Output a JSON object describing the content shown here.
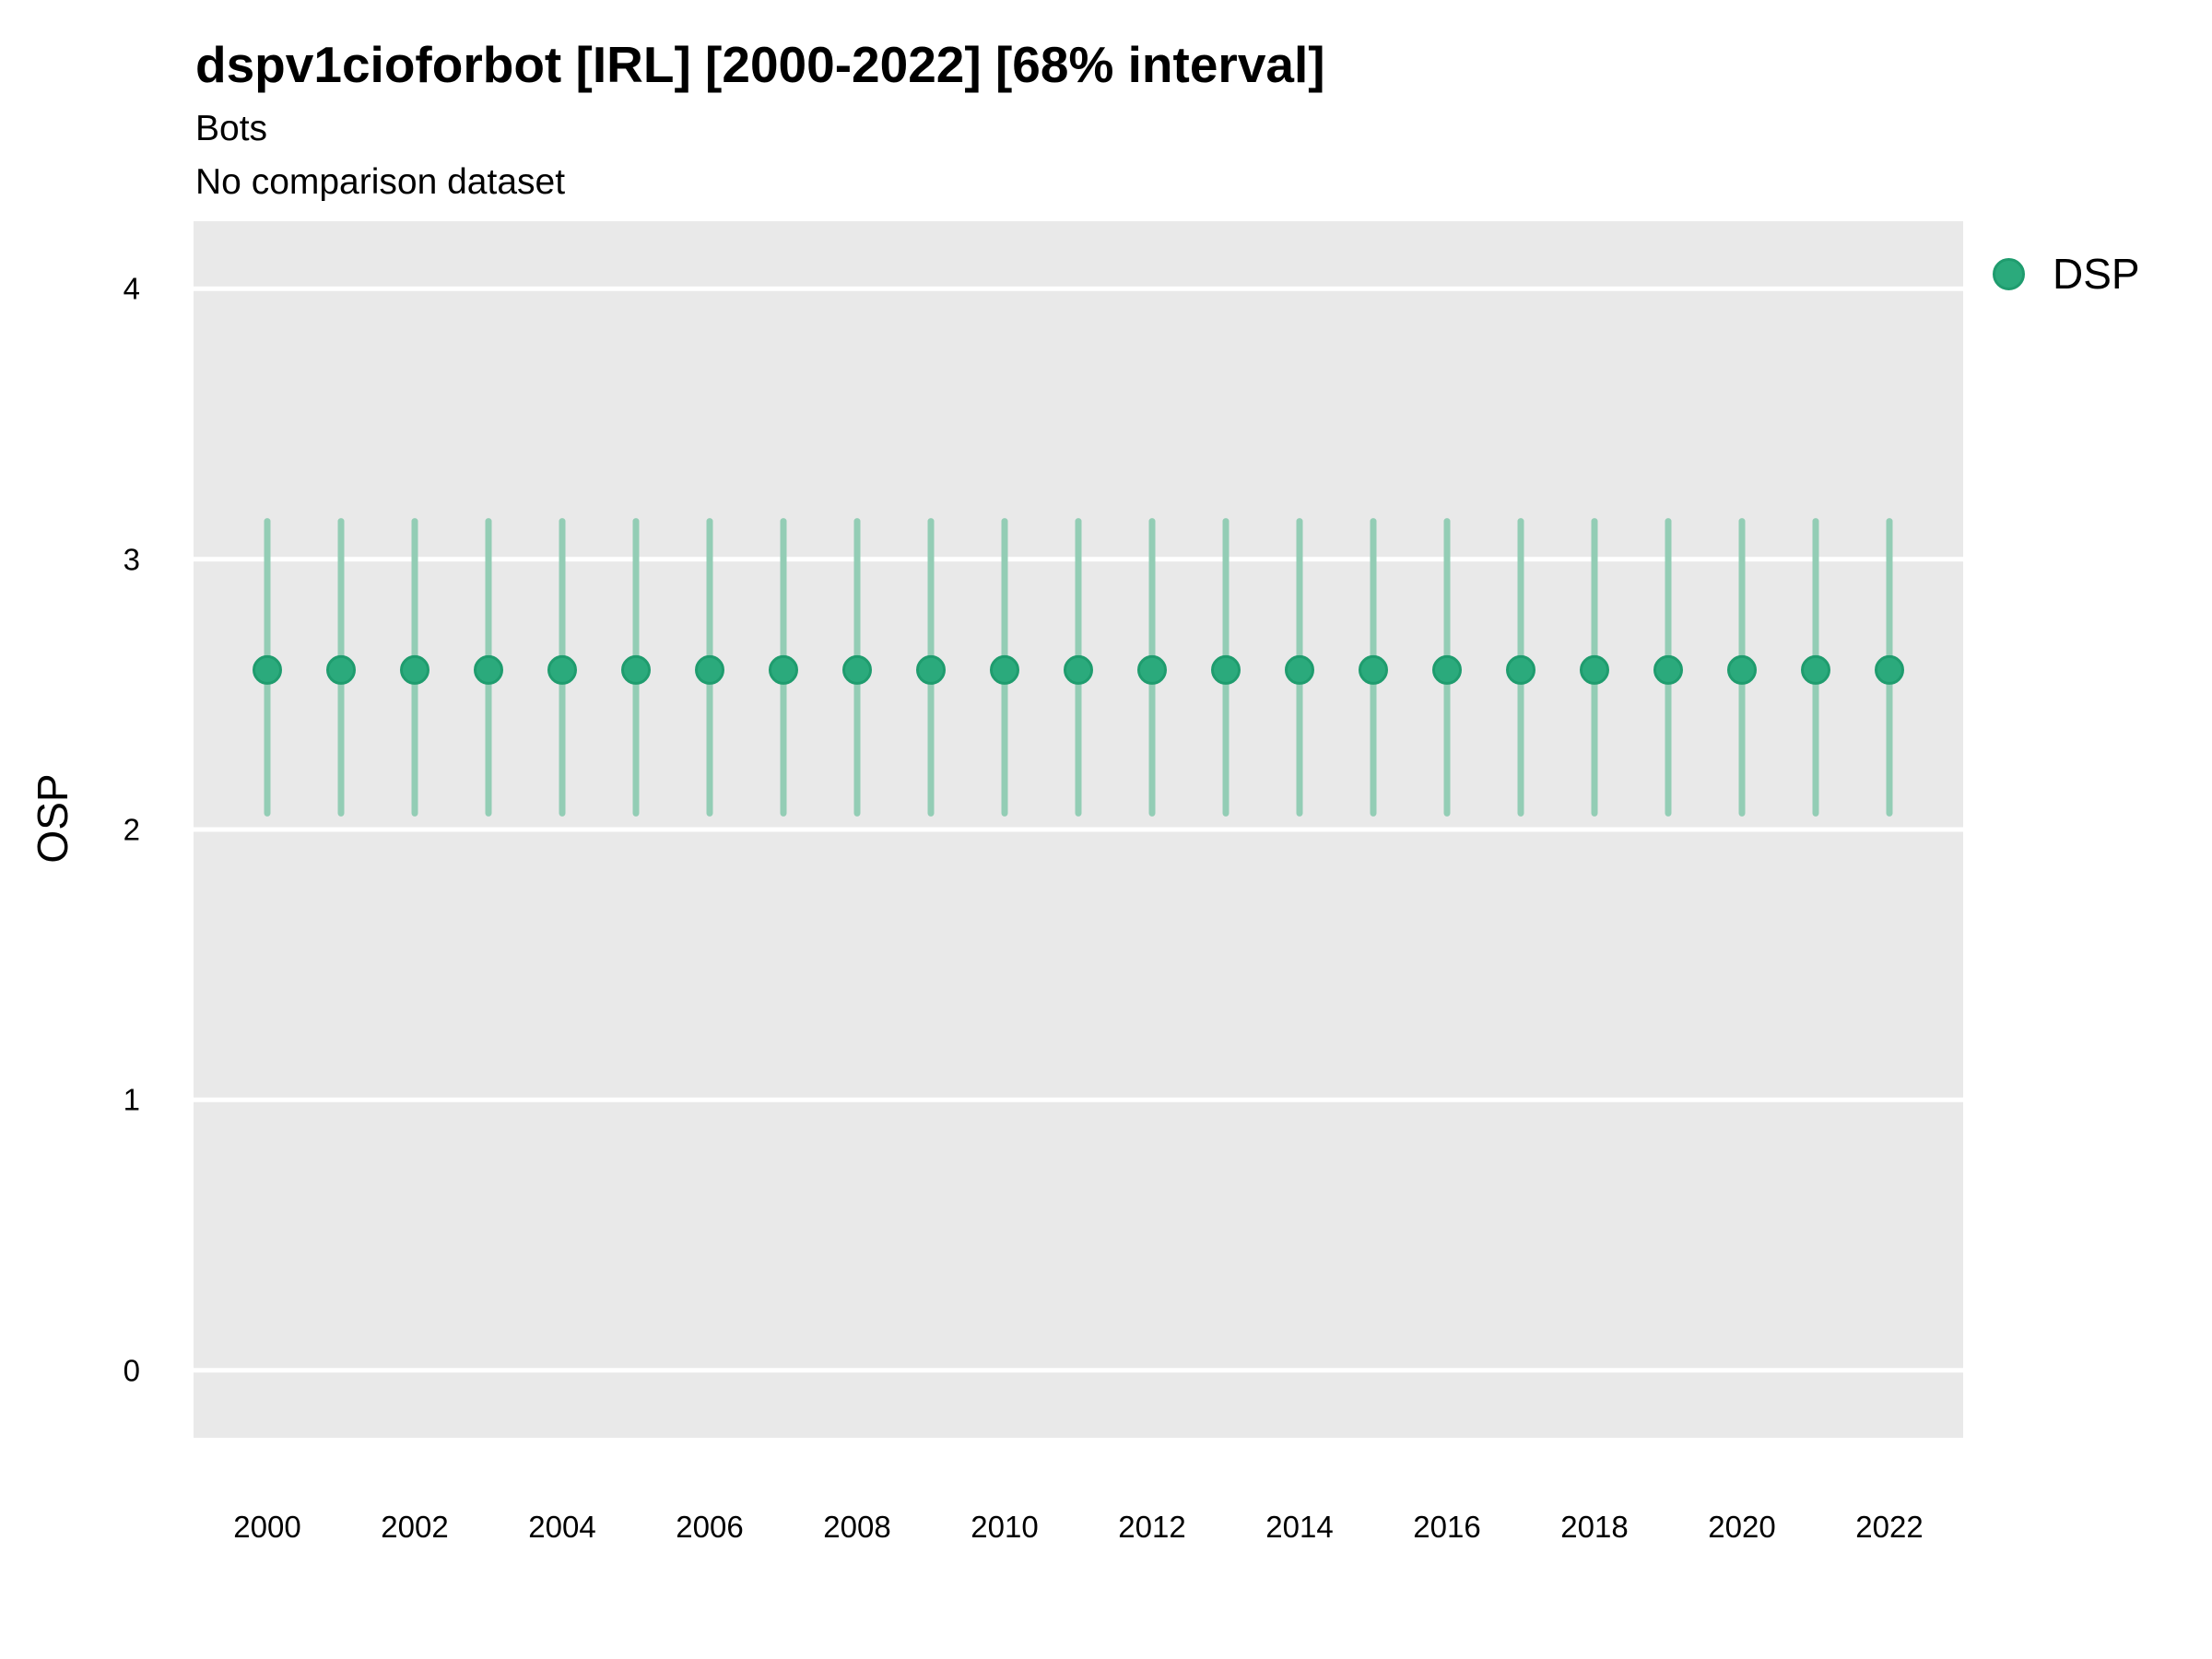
{
  "header": {
    "title": "dspv1cioforbot [IRL] [2000-2022] [68% interval]",
    "subtitle": "Bots",
    "note": "No comparison dataset"
  },
  "chart_data": {
    "type": "scatter",
    "subtype": "pointrange-interval",
    "title": "dspv1cioforbot [IRL] [2000-2022] [68% interval]",
    "subtitle": "Bots",
    "note": "No comparison dataset",
    "xlabel": "",
    "ylabel": "OSP",
    "interval_label": "68% interval",
    "legend_position": "right-top",
    "grid": "major-horizontal-white-on-gray",
    "x": [
      2000,
      2001,
      2002,
      2003,
      2004,
      2005,
      2006,
      2007,
      2008,
      2009,
      2010,
      2011,
      2012,
      2013,
      2014,
      2015,
      2016,
      2017,
      2018,
      2019,
      2020,
      2021,
      2022
    ],
    "series": [
      {
        "name": "DSP",
        "center": [
          2.59,
          2.59,
          2.59,
          2.59,
          2.59,
          2.59,
          2.59,
          2.59,
          2.59,
          2.59,
          2.59,
          2.59,
          2.59,
          2.59,
          2.59,
          2.59,
          2.59,
          2.59,
          2.59,
          2.59,
          2.59,
          2.59,
          2.59
        ],
        "lower": [
          2.06,
          2.06,
          2.06,
          2.06,
          2.06,
          2.06,
          2.06,
          2.06,
          2.06,
          2.06,
          2.06,
          2.06,
          2.06,
          2.06,
          2.06,
          2.06,
          2.06,
          2.06,
          2.06,
          2.06,
          2.06,
          2.06,
          2.06
        ],
        "upper": [
          3.14,
          3.14,
          3.14,
          3.14,
          3.14,
          3.14,
          3.14,
          3.14,
          3.14,
          3.14,
          3.14,
          3.14,
          3.14,
          3.14,
          3.14,
          3.14,
          3.14,
          3.14,
          3.14,
          3.14,
          3.14,
          3.14,
          3.14
        ]
      }
    ],
    "legend": [
      {
        "label": "DSP",
        "color": "#2baa7c"
      }
    ],
    "xlim": [
      1999,
      2023
    ],
    "ylim": [
      -0.25,
      4.25
    ],
    "xticks": [
      2000,
      2002,
      2004,
      2006,
      2008,
      2010,
      2012,
      2014,
      2016,
      2018,
      2020,
      2022
    ],
    "yticks": [
      0,
      1,
      2,
      3,
      4
    ],
    "colors": {
      "point_fill": "#2baa7c",
      "point_stroke": "#1f9c6e",
      "interval_bar": "#93cdb5",
      "panel_background": "#e9e9e9",
      "gridline": "#ffffff",
      "text": "#000000"
    }
  }
}
